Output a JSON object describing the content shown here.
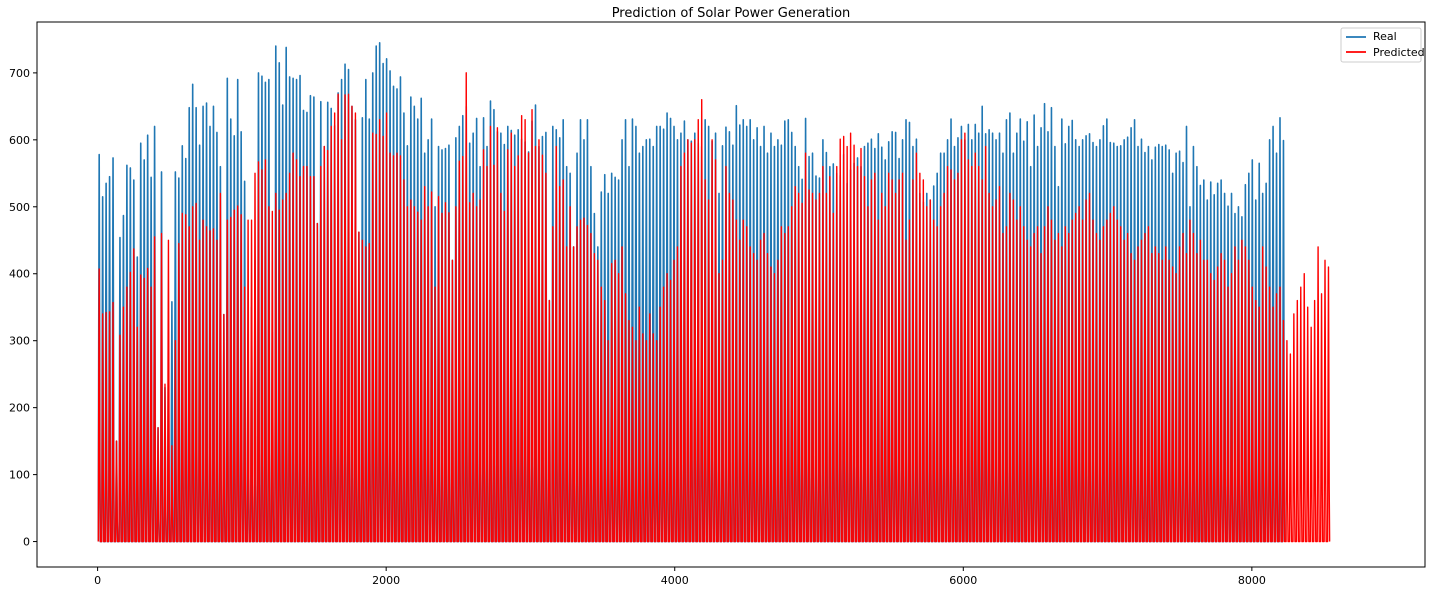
{
  "chart_data": {
    "type": "line",
    "title": "Prediction of Solar Power Generation",
    "xlabel": "",
    "ylabel": "",
    "xlim": [
      -420,
      9200
    ],
    "ylim": [
      -38,
      776
    ],
    "xticks": [
      0,
      2000,
      4000,
      6000,
      8000
    ],
    "yticks": [
      0,
      100,
      200,
      300,
      400,
      500,
      600,
      700
    ],
    "grid": false,
    "legend_position": "top-right",
    "samples_per_day": 24,
    "num_days": 365,
    "series": [
      {
        "name": "Real",
        "color": "#1f77b4",
        "daily_peaks": [
          578,
          515,
          535,
          545,
          573,
          150,
          454,
          487,
          562,
          558,
          540,
          425,
          595,
          570,
          607,
          544,
          620,
          170,
          552,
          230,
          270,
          358,
          552,
          543,
          591,
          572,
          648,
          683,
          648,
          592,
          650,
          655,
          620,
          650,
          611,
          560,
          339,
          692,
          631,
          606,
          690,
          612,
          538,
          310,
          350,
          420,
          700,
          695,
          686,
          690,
          313,
          740,
          715,
          652,
          738,
          694,
          692,
          690,
          696,
          644,
          641,
          666,
          664,
          475,
          657,
          590,
          656,
          647,
          621,
          670,
          690,
          713,
          705,
          650,
          630,
          462,
          633,
          690,
          631,
          700,
          740,
          745,
          714,
          721,
          703,
          680,
          676,
          694,
          640,
          591,
          664,
          650,
          631,
          662,
          580,
          600,
          631,
          500,
          590,
          585,
          587,
          592,
          420,
          603,
          620,
          636,
          650,
          595,
          610,
          632,
          560,
          633,
          590,
          658,
          645,
          612,
          610,
          593,
          620,
          614,
          607,
          615,
          601,
          597,
          582,
          628,
          652,
          590,
          605,
          611,
          360,
          620,
          615,
          603,
          630,
          560,
          550,
          440,
          580,
          630,
          600,
          630,
          560,
          490,
          440,
          522,
          548,
          520,
          550,
          544,
          540,
          600,
          630,
          560,
          631,
          620,
          580,
          590,
          600,
          601,
          590,
          620,
          620,
          616,
          640,
          632,
          620,
          600,
          610,
          628,
          600,
          598,
          610,
          595,
          590,
          630,
          620,
          598,
          610,
          520,
          591,
          619,
          612,
          592,
          651,
          622,
          630,
          620,
          630,
          600,
          618,
          590,
          620,
          580,
          610,
          590,
          600,
          592,
          628,
          630,
          611,
          590,
          560,
          541,
          632,
          575,
          580,
          546,
          543,
          600,
          581,
          560,
          564,
          550,
          547,
          578,
          535,
          555,
          565,
          573,
          560,
          590,
          595,
          601,
          587,
          609,
          589,
          570,
          597,
          612,
          611,
          572,
          600,
          630,
          626,
          590,
          601,
          520,
          507,
          520,
          510,
          531,
          550,
          580,
          580,
          600,
          631,
          590,
          603,
          620,
          600,
          623,
          600,
          623,
          610,
          650,
          609,
          615,
          610,
          600,
          610,
          580,
          630,
          640,
          580,
          610,
          631,
          598,
          627,
          560,
          637,
          590,
          618,
          654,
          612,
          648,
          590,
          530,
          631,
          594,
          620,
          629,
          600,
          590,
          600,
          606,
          609,
          596,
          590,
          600,
          621,
          631,
          596,
          595,
          590,
          591,
          600,
          604,
          618,
          630,
          590,
          601,
          581,
          590,
          570,
          589,
          593,
          590,
          592,
          585,
          550,
          580,
          583,
          566,
          620,
          500,
          590,
          560,
          532,
          540,
          510,
          537,
          518,
          535,
          540,
          520,
          501,
          520,
          490,
          500,
          485,
          533,
          550,
          570,
          510,
          565,
          520,
          535,
          600,
          620,
          580,
          633,
          599
        ],
        "night_min": 0
      },
      {
        "name": "Predicted",
        "color": "#ff0000",
        "daily_peaks": [
          407,
          340,
          342,
          343,
          357,
          150,
          308,
          350,
          380,
          402,
          437,
          320,
          398,
          393,
          408,
          380,
          455,
          170,
          460,
          235,
          450,
          143,
          300,
          445,
          490,
          488,
          470,
          500,
          505,
          450,
          480,
          470,
          464,
          467,
          450,
          520,
          339,
          480,
          484,
          495,
          501,
          488,
          380,
          480,
          480,
          550,
          567,
          555,
          570,
          500,
          493,
          520,
          495,
          510,
          520,
          550,
          580,
          570,
          545,
          560,
          560,
          545,
          545,
          475,
          560,
          590,
          584,
          620,
          640,
          668,
          600,
          667,
          668,
          650,
          640,
          462,
          450,
          440,
          445,
          610,
          608,
          630,
          605,
          640,
          580,
          576,
          580,
          576,
          540,
          500,
          510,
          500,
          492,
          480,
          530,
          500,
          522,
          380,
          515,
          490,
          506,
          491,
          420,
          500,
          568,
          575,
          700,
          506,
          520,
          500,
          510,
          585,
          560,
          620,
          562,
          618,
          520,
          493,
          585,
          610,
          560,
          576,
          636,
          630,
          580,
          645,
          590,
          600,
          577,
          550,
          360,
          470,
          590,
          530,
          540,
          440,
          500,
          440,
          470,
          480,
          483,
          472,
          460,
          430,
          420,
          380,
          360,
          300,
          415,
          420,
          400,
          440,
          370,
          330,
          320,
          300,
          350,
          310,
          300,
          340,
          310,
          300,
          350,
          380,
          400,
          390,
          420,
          440,
          560,
          580,
          600,
          595,
          600,
          630,
          660,
          540,
          510,
          600,
          570,
          400,
          420,
          560,
          520,
          510,
          480,
          450,
          480,
          470,
          440,
          430,
          420,
          450,
          460,
          430,
          410,
          400,
          420,
          470,
          460,
          470,
          500,
          530,
          520,
          505,
          580,
          525,
          520,
          510,
          520,
          560,
          520,
          545,
          490,
          560,
          601,
          605,
          590,
          610,
          592,
          560,
          587,
          545,
          500,
          540,
          550,
          480,
          520,
          500,
          550,
          540,
          520,
          540,
          550,
          450,
          480,
          540,
          580,
          550,
          540,
          500,
          510,
          480,
          470,
          500,
          520,
          560,
          555,
          540,
          550,
          600,
          610,
          570,
          560,
          580,
          560,
          540,
          590,
          520,
          500,
          510,
          530,
          460,
          470,
          520,
          510,
          480,
          500,
          470,
          450,
          440,
          460,
          470,
          430,
          470,
          500,
          480,
          450,
          460,
          440,
          470,
          460,
          480,
          490,
          500,
          480,
          510,
          520,
          480,
          460,
          450,
          470,
          480,
          490,
          500,
          480,
          470,
          450,
          460,
          430,
          420,
          440,
          450,
          460,
          470,
          430,
          440,
          430,
          420,
          440,
          420,
          410,
          400,
          440,
          460,
          430,
          480,
          460,
          430,
          450,
          420,
          420,
          400,
          390,
          410,
          430,
          420,
          380,
          400,
          440,
          420,
          450,
          440,
          420,
          380,
          360,
          350,
          440,
          410,
          380,
          350,
          370,
          380,
          330,
          300,
          280,
          340,
          360,
          380,
          400,
          350,
          320,
          360,
          440,
          370,
          420,
          410
        ],
        "night_min": 0
      }
    ]
  }
}
